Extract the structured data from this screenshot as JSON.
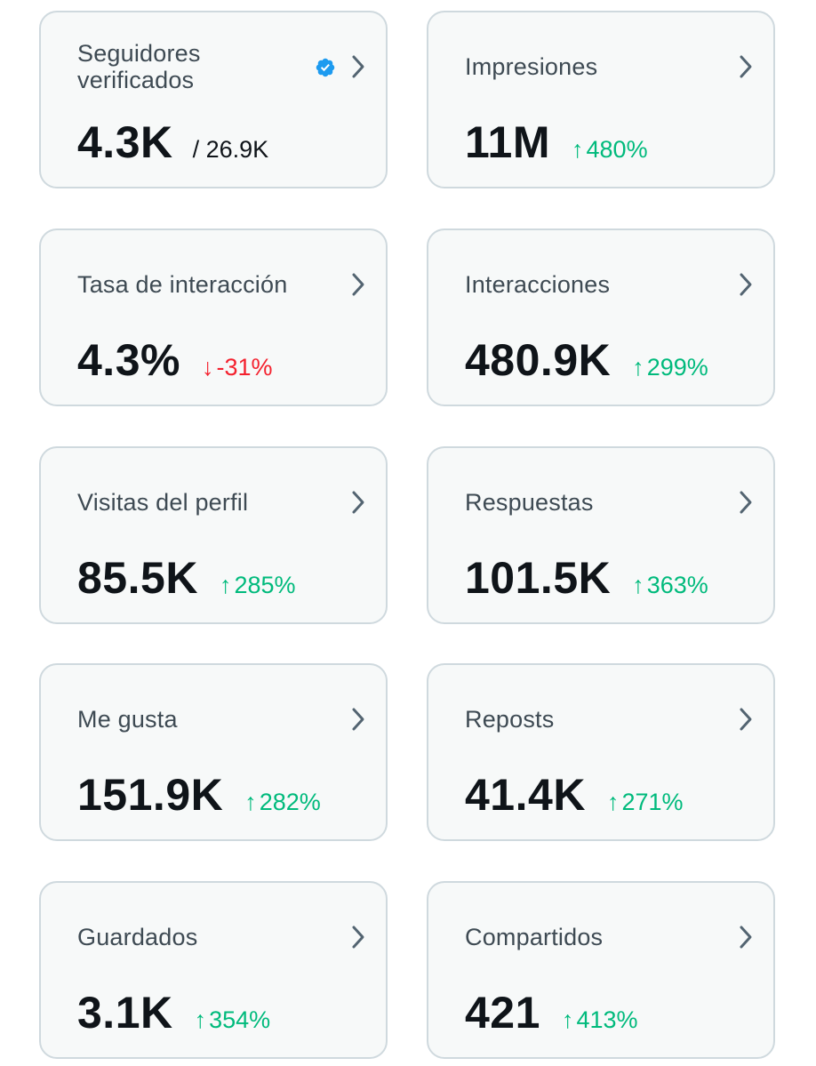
{
  "colors": {
    "card_bg": "#f7f9f9",
    "card_border": "#cfd9de",
    "label": "#3e4a53",
    "value": "#0f1419",
    "positive": "#00ba7c",
    "negative": "#f4212e",
    "verified": "#1d9bf0"
  },
  "cards": [
    {
      "label": "Seguidores verificados",
      "label_line1": "Seguidores",
      "label_line2": "verificados",
      "value": "4.3K",
      "sub": "/ 26.9K",
      "icon": "verified-badge-icon"
    },
    {
      "label": "Impresiones",
      "value": "11M",
      "arrow": "↑",
      "change": "480%",
      "direction": "up"
    },
    {
      "label": "Tasa de interacción",
      "value": "4.3%",
      "arrow": "↓",
      "change": "-31%",
      "direction": "down"
    },
    {
      "label": "Interacciones",
      "value": "480.9K",
      "arrow": "↑",
      "change": "299%",
      "direction": "up"
    },
    {
      "label": "Visitas del perfil",
      "value": "85.5K",
      "arrow": "↑",
      "change": "285%",
      "direction": "up"
    },
    {
      "label": "Respuestas",
      "value": "101.5K",
      "arrow": "↑",
      "change": "363%",
      "direction": "up"
    },
    {
      "label": "Me gusta",
      "value": "151.9K",
      "arrow": "↑",
      "change": "282%",
      "direction": "up"
    },
    {
      "label": "Reposts",
      "value": "41.4K",
      "arrow": "↑",
      "change": "271%",
      "direction": "up"
    },
    {
      "label": "Guardados",
      "value": "3.1K",
      "arrow": "↑",
      "change": "354%",
      "direction": "up"
    },
    {
      "label": "Compartidos",
      "value": "421",
      "arrow": "↑",
      "change": "413%",
      "direction": "up"
    }
  ]
}
